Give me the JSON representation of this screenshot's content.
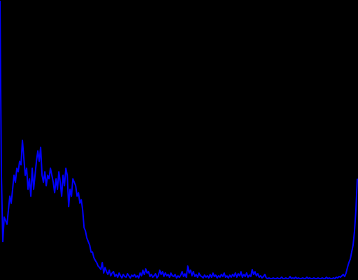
{
  "chart_data": {
    "type": "line",
    "color": "#0000ff",
    "ylim": [
      0,
      400
    ],
    "values": [
      400,
      150,
      55,
      90,
      85,
      80,
      100,
      120,
      110,
      130,
      150,
      140,
      160,
      155,
      170,
      165,
      200,
      175,
      150,
      160,
      130,
      145,
      120,
      160,
      130,
      150,
      170,
      185,
      170,
      190,
      150,
      140,
      155,
      135,
      150,
      145,
      160,
      150,
      140,
      125,
      145,
      130,
      155,
      140,
      120,
      150,
      135,
      160,
      150,
      105,
      130,
      120,
      145,
      140,
      135,
      120,
      125,
      110,
      115,
      100,
      75,
      70,
      60,
      55,
      50,
      40,
      40,
      32,
      28,
      25,
      20,
      18,
      15,
      25,
      10,
      18,
      12,
      8,
      14,
      6,
      10,
      12,
      5,
      8,
      4,
      10,
      6,
      3,
      8,
      5,
      4,
      9,
      6,
      3,
      7,
      5,
      8,
      4,
      6,
      3,
      10,
      6,
      14,
      8,
      16,
      10,
      12,
      5,
      8,
      4,
      6,
      9,
      3,
      6,
      14,
      8,
      12,
      5,
      10,
      6,
      8,
      4,
      10,
      6,
      5,
      8,
      3,
      6,
      4,
      7,
      12,
      5,
      9,
      4,
      20,
      10,
      14,
      6,
      12,
      5,
      8,
      4,
      10,
      6,
      5,
      3,
      7,
      4,
      6,
      3,
      8,
      4,
      10,
      5,
      7,
      3,
      6,
      4,
      8,
      5,
      10,
      4,
      6,
      3,
      7,
      4,
      8,
      5,
      10,
      4,
      9,
      6,
      12,
      4,
      8,
      5,
      10,
      4,
      7,
      5,
      15,
      8,
      12,
      6,
      9,
      4,
      6,
      3,
      5,
      8,
      3,
      2,
      3,
      2,
      2,
      3,
      2,
      2,
      3,
      2,
      2,
      4,
      2,
      2,
      3,
      2,
      2,
      5,
      2,
      3,
      2,
      4,
      2,
      3,
      2,
      2,
      3,
      2,
      2,
      4,
      2,
      3,
      2,
      2,
      3,
      2,
      2,
      3,
      2,
      2,
      3,
      2,
      2,
      4,
      2,
      3,
      2,
      2,
      3,
      2,
      4,
      3,
      5,
      4,
      6,
      8,
      5,
      10,
      18,
      25,
      30,
      40,
      50,
      70,
      100,
      145
    ]
  }
}
